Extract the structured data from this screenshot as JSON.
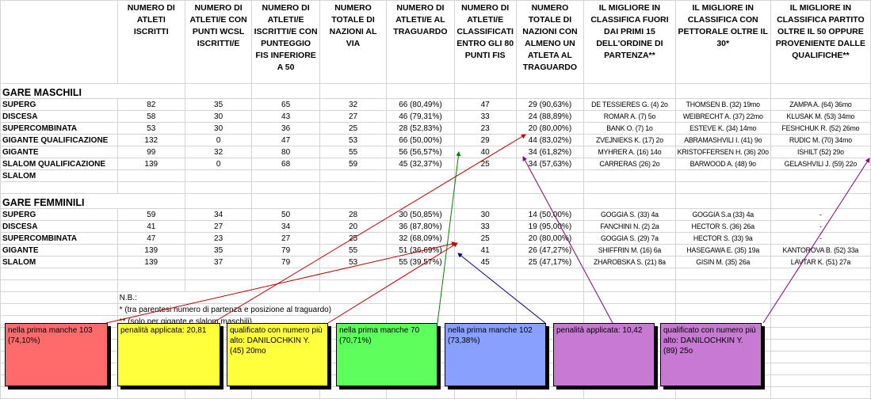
{
  "columns": [
    "",
    "NUMERO DI ATLETI ISCRITTI",
    "NUMERO DI ATLETI/E CON PUNTI WCSL ISCRITTI/E",
    "NUMERO DI ATLETI/E ISCRITTI/E CON PUNTEGGIO FIS INFERIORE A 50",
    "NUMERO TOTALE DI NAZIONI AL VIA",
    "NUMERO DI ATLETI/E AL TRAGUARDO",
    "NUMERO DI ATLETI/E CLASSIFICATI ENTRO GLI 80 PUNTI FIS",
    "NUMERO TOTALE DI NAZIONI CON ALMENO UN ATLETA AL TRAGUARDO",
    "IL MIGLIORE IN CLASSIFICA FUORI DAI PRIMI 15 DELL'ORDINE DI PARTENZA**",
    "IL MIGLIORE IN CLASSIFICA CON PETTORALE OLTRE IL 30*",
    "IL MIGLIORE IN CLASSIFICA PARTITO OLTRE IL 50 OPPURE PROVENIENTE DALLE QUALIFICHE**"
  ],
  "male": {
    "title": "GARE MASCHILI",
    "rows": [
      [
        "SUPERG",
        "82",
        "35",
        "65",
        "32",
        "66 (80,49%)",
        "47",
        "29 (90,63%)",
        "DE TESSIERES G. (4) 2o",
        "THOMSEN B. (32) 19mo",
        "ZAMPA A. (64) 36mo"
      ],
      [
        "DISCESA",
        "58",
        "30",
        "43",
        "27",
        "46 (79,31%)",
        "33",
        "24 (88,89%)",
        "ROMAR A. (7) 5o",
        "WEIBRECHT A. (37) 22mo",
        "KLUSAK M. (53) 34mo"
      ],
      [
        "SUPERCOMBINATA",
        "53",
        "30",
        "36",
        "25",
        "28 (52,83%)",
        "23",
        "20 (80,00%)",
        "BANK O. (7) 1o",
        "ESTEVE K. (34) 14mo",
        "FESHCHUK R. (52) 26mo"
      ],
      [
        "GIGANTE QUALIFICAZIONE",
        "132",
        "0",
        "47",
        "53",
        "66 (50,00%)",
        "29",
        "44 (83,02%)",
        "ZVEJNIEKS K. (17) 2o",
        "ABRAMASHVILI I. (41) 9o",
        "RUDIC M. (70) 34mo"
      ],
      [
        "GIGANTE",
        "99",
        "32",
        "80",
        "55",
        "56 (56,57%)",
        "40",
        "34 (61,82%)",
        "MYHRER A. (16) 14o",
        "KRISTOFFERSEN H. (36) 20o",
        "ISHILT (52) 29o"
      ],
      [
        "SLALOM QUALIFICAZIONE",
        "139",
        "0",
        "68",
        "59",
        "45 (32,37%)",
        "25",
        "34 (57,63%)",
        "CARRERAS (26) 2o",
        "BARWOOD A. (48) 9o",
        "GELASHVILI J. (59) 22o"
      ],
      [
        "SLALOM",
        "",
        "",
        "",
        "",
        "",
        "",
        "",
        "",
        "",
        ""
      ]
    ]
  },
  "female": {
    "title": "GARE FEMMINILI",
    "rows": [
      [
        "SUPERG",
        "59",
        "34",
        "50",
        "28",
        "30 (50,85%)",
        "30",
        "14 (50,00%)",
        "GOGGIA S. (33) 4a",
        "GOGGIA S.a (33) 4a",
        "-"
      ],
      [
        "DISCESA",
        "41",
        "27",
        "34",
        "20",
        "36 (87,80%)",
        "33",
        "19 (95,00%)",
        "FANCHINI N. (2) 2a",
        "HECTOR S. (36) 26a",
        "-"
      ],
      [
        "SUPERCOMBINATA",
        "47",
        "23",
        "27",
        "25",
        "32 (68,09%)",
        "25",
        "20 (80,00%)",
        "GOGGIA S. (29) 7a",
        "HECTOR S. (33) 9a",
        "-"
      ],
      [
        "GIGANTE",
        "139",
        "35",
        "79",
        "55",
        "51 (36,69%)",
        "41",
        "26 (47,27%)",
        "SHIFFRIN M. (16) 6a",
        "HASEGAWA E. (35) 19a",
        "KANTOROVA B. (52) 33a"
      ],
      [
        "SLALOM",
        "139",
        "37",
        "79",
        "53",
        "55 (39,57%)",
        "45",
        "25 (47,17%)",
        "ZHAROBSKA S. (21) 8a",
        "GISIN M. (35) 26a",
        "LAVTAR K. (51) 27a"
      ]
    ]
  },
  "notes": [
    "N.B.:",
    "* (tra parentesi numero di partenza e posizione al traguardo)",
    "** (solo per gigante e slalom maschili)"
  ],
  "annotations": [
    {
      "text": "nella prima manche 103 (74,10%)",
      "color": "#ff6b6b"
    },
    {
      "text": "penalità applicata: 20,81",
      "color": "#ffff3c"
    },
    {
      "text": "qualificato con numero più alto: DANILOCHKIN Y. (45) 20mo",
      "color": "#ffff3c"
    },
    {
      "text": "nella prima manche 70 (70,71%)",
      "color": "#5cff5c"
    },
    {
      "text": "nella prima manche 102 (73,38%)",
      "color": "#8aa0ff"
    },
    {
      "text": "penalità applicata: 10,42",
      "color": "#c77ad1"
    },
    {
      "text": "qualificato con numero più alto: DANILOCHKIN Y. (89) 25o",
      "color": "#c77ad1"
    }
  ],
  "arrow_colors": [
    "#c00000",
    "#c00000",
    "#c00000",
    "#008000",
    "#000080",
    "#800080",
    "#800080"
  ]
}
